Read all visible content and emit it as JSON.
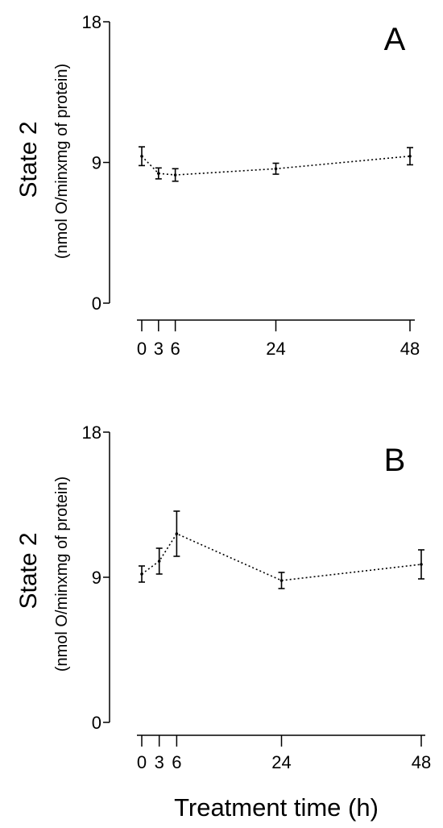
{
  "chart_data": [
    {
      "type": "line",
      "panel_label": "A",
      "ylabel": "State 2",
      "ylabel_sub": "(nmol O/minxmg of protein)",
      "xlabel": "",
      "ylim": [
        0,
        18
      ],
      "yticks": [
        "0",
        "9",
        "18"
      ],
      "x_tick_values": [
        0,
        3,
        6,
        24,
        48
      ],
      "x_tick_labels": [
        "0",
        "3",
        "6",
        "24",
        "48"
      ],
      "grid": false,
      "line_style": "dotted",
      "series": [
        {
          "x": [
            0,
            3,
            6,
            24,
            48
          ],
          "y": [
            9.4,
            8.3,
            8.2,
            8.6,
            9.4
          ],
          "error": [
            0.6,
            0.35,
            0.4,
            0.35,
            0.55
          ]
        }
      ]
    },
    {
      "type": "line",
      "panel_label": "B",
      "ylabel": "State 2",
      "ylabel_sub": "(nmol O/minxmg of protein)",
      "xlabel": "Treatment time (h)",
      "ylim": [
        0,
        18
      ],
      "yticks": [
        "0",
        "9",
        "18"
      ],
      "x_tick_values": [
        0,
        3,
        6,
        24,
        48
      ],
      "x_tick_labels": [
        "0",
        "3",
        "6",
        "24",
        "48"
      ],
      "grid": false,
      "line_style": "dotted",
      "series": [
        {
          "x": [
            0,
            3,
            6,
            24,
            48
          ],
          "y": [
            9.2,
            10.0,
            11.7,
            8.8,
            9.8
          ],
          "error": [
            0.5,
            0.8,
            1.4,
            0.5,
            0.9
          ]
        }
      ]
    }
  ]
}
